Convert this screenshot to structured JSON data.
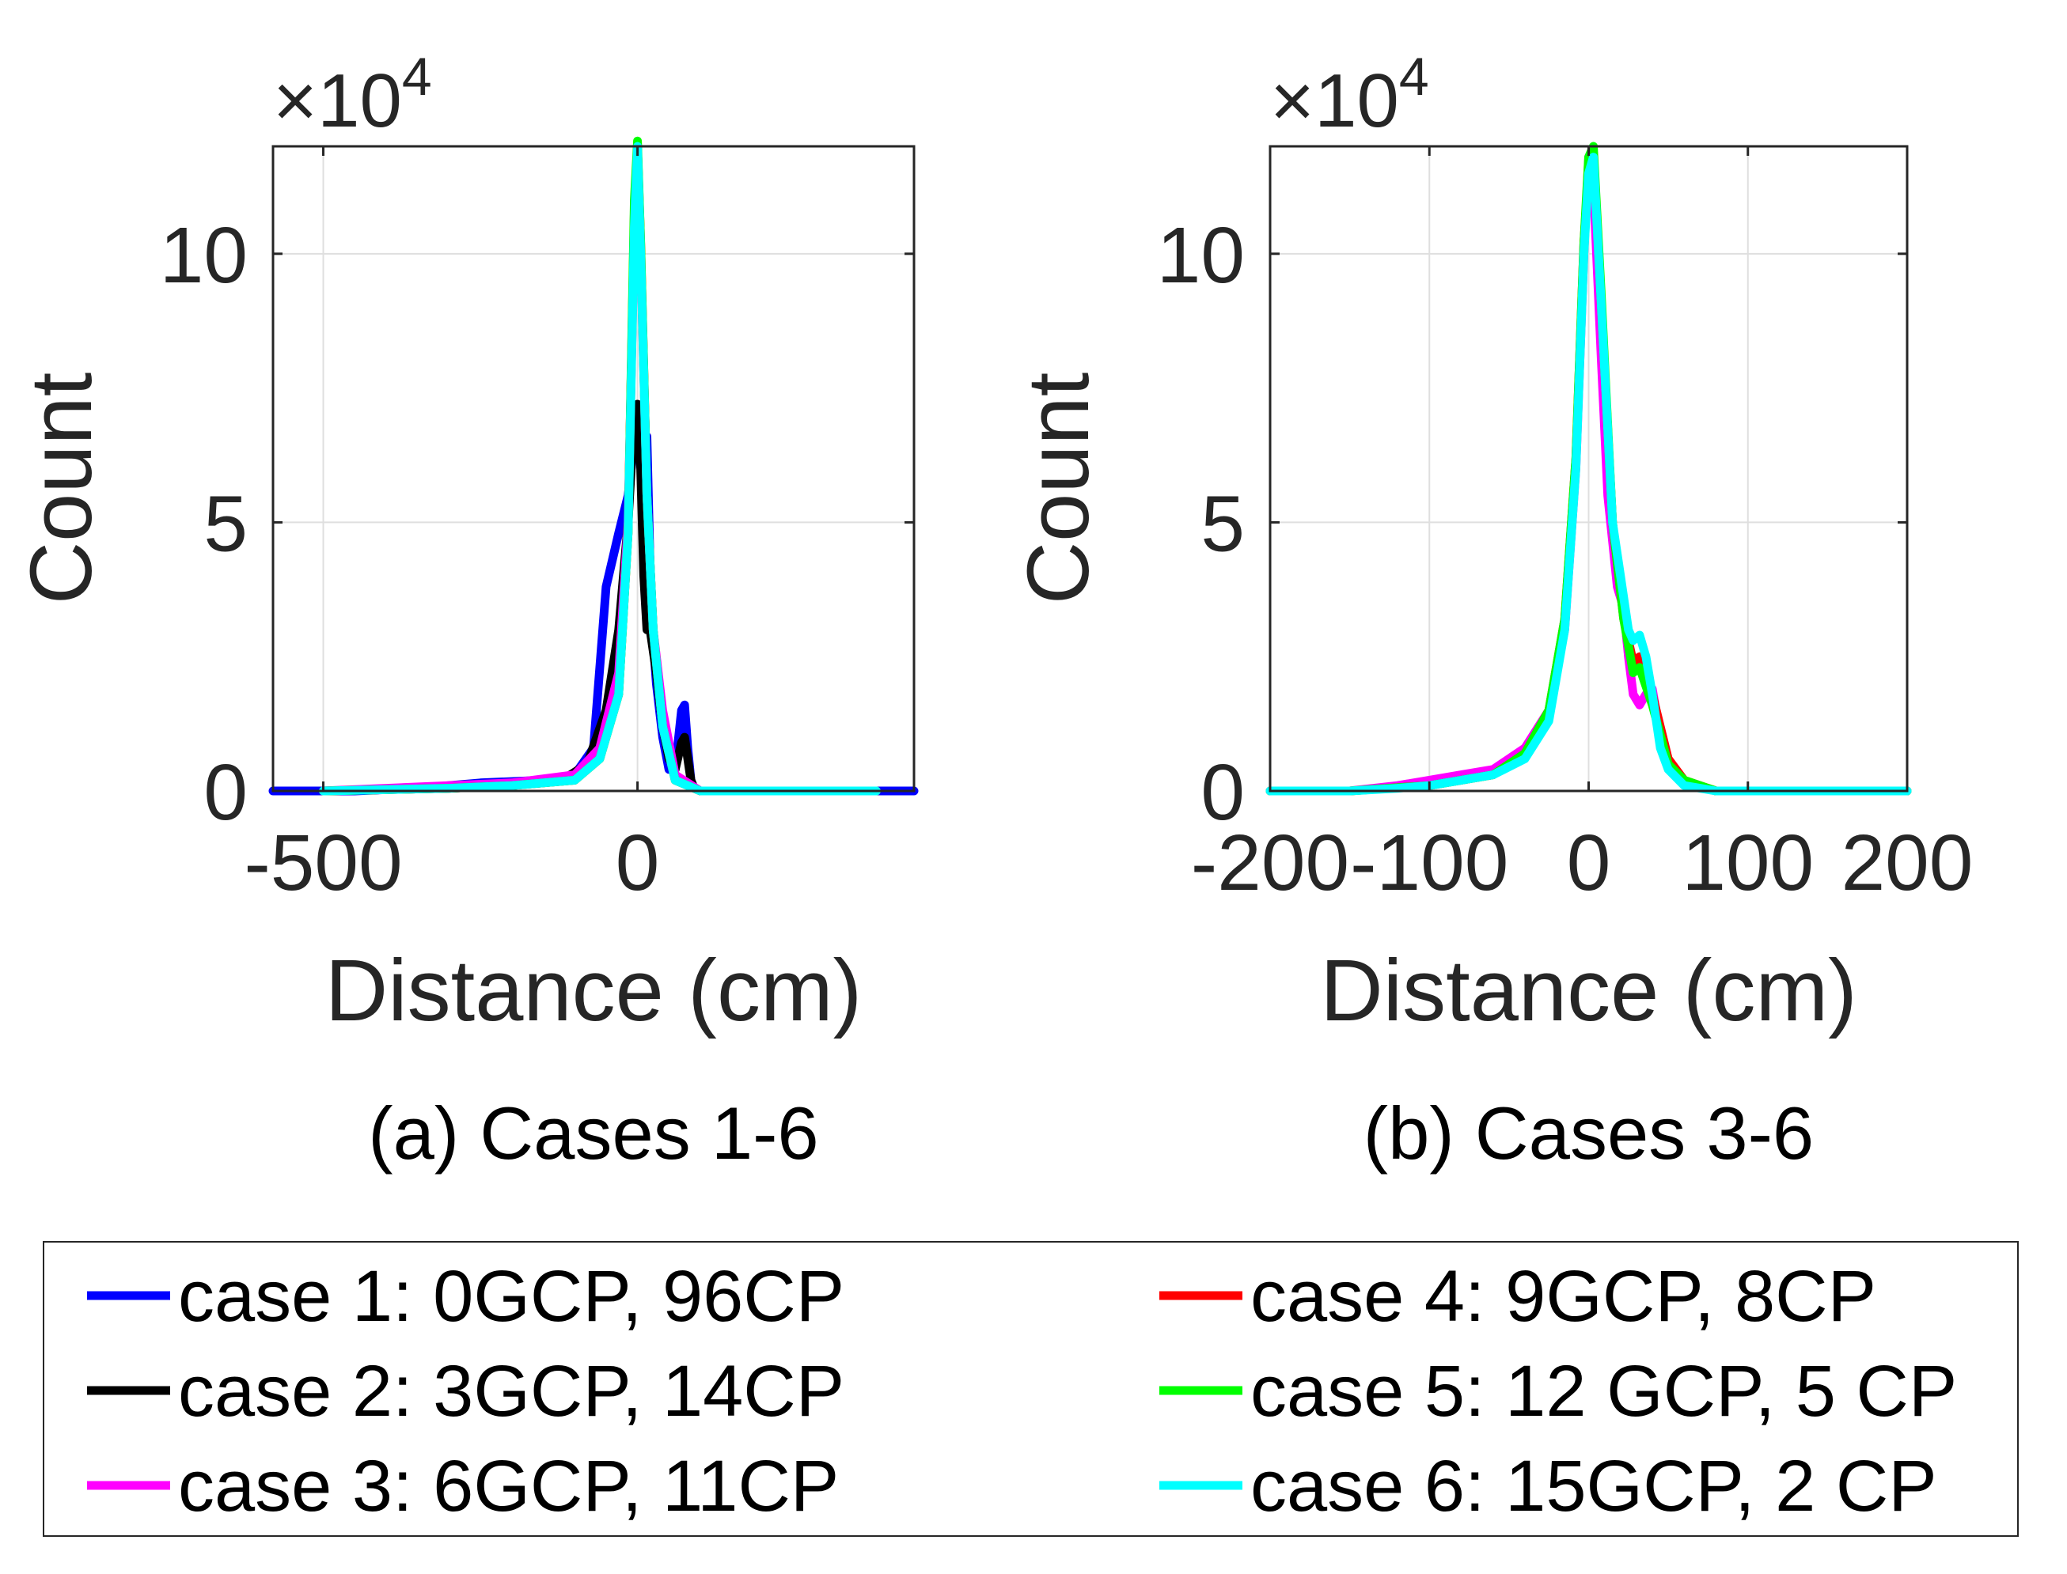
{
  "chart_data": [
    {
      "type": "line",
      "subtitle": "(a) Cases 1-6",
      "xlabel": "Distance (cm)",
      "ylabel": "Count",
      "y_multiplier": "×10",
      "y_multiplier_exp": "4",
      "xlim": [
        -580,
        440
      ],
      "ylim": [
        0,
        12
      ],
      "xticks": [
        -500,
        0
      ],
      "xtick_labels": [
        "-500",
        "0"
      ],
      "yticks": [
        0,
        5,
        10
      ],
      "ytick_labels": [
        "0",
        "5",
        "10"
      ],
      "grid": true,
      "series": [
        {
          "name": "case 1: 0GCP, 96CP",
          "color": "#0000FF",
          "x": [
            -580,
            -520,
            -450,
            -350,
            -250,
            -150,
            -100,
            -70,
            -50,
            -30,
            -15,
            -5,
            0,
            5,
            10,
            15,
            20,
            25,
            30,
            40,
            50,
            60,
            70,
            75,
            80,
            85,
            90,
            100,
            150,
            250,
            350,
            380,
            440
          ],
          "y": [
            0,
            0,
            0,
            0.05,
            0.15,
            0.2,
            0.3,
            0.8,
            3.8,
            4.8,
            5.5,
            6.5,
            7.0,
            6.8,
            6.6,
            6.6,
            4.2,
            2.8,
            2.0,
            1.0,
            0.4,
            0.4,
            1.5,
            1.6,
            0.8,
            0.2,
            0.05,
            0,
            0,
            0,
            0,
            0,
            0
          ]
        },
        {
          "name": "case 2: 3GCP, 14CP",
          "color": "#000000",
          "x": [
            -500,
            -300,
            -200,
            -120,
            -80,
            -50,
            -30,
            -15,
            -5,
            0,
            5,
            10,
            15,
            20,
            30,
            40,
            50,
            60,
            70,
            75,
            80,
            85,
            90,
            100,
            200,
            380
          ],
          "y": [
            0,
            0.05,
            0.1,
            0.2,
            0.5,
            1.5,
            3.0,
            5.0,
            7.0,
            7.2,
            6.0,
            4.0,
            3.0,
            3.0,
            2.2,
            1.2,
            0.6,
            0.4,
            0.9,
            1.0,
            0.6,
            0.2,
            0.05,
            0,
            0,
            0
          ]
        },
        {
          "name": "case 3: 6GCP, 11CP",
          "color": "#FF00FF",
          "x": [
            -500,
            -300,
            -200,
            -100,
            -60,
            -30,
            -15,
            -5,
            0,
            5,
            15,
            25,
            40,
            60,
            100,
            380
          ],
          "y": [
            0,
            0.1,
            0.15,
            0.3,
            0.8,
            2.2,
            5.0,
            10.5,
            11.8,
            10.0,
            5.5,
            3.0,
            1.5,
            0.3,
            0,
            0
          ]
        },
        {
          "name": "case 4: 9GCP, 8CP",
          "color": "#FF0000",
          "x": [
            -500,
            -300,
            -200,
            -100,
            -60,
            -30,
            -15,
            -5,
            0,
            5,
            15,
            25,
            40,
            60,
            100,
            380
          ],
          "y": [
            0,
            0.05,
            0.1,
            0.2,
            0.6,
            1.8,
            4.8,
            10.8,
            12.0,
            10.2,
            5.5,
            3.0,
            1.2,
            0.2,
            0,
            0
          ]
        },
        {
          "name": "case 5: 12 GCP, 5 CP",
          "color": "#00FF00",
          "x": [
            -500,
            -300,
            -200,
            -100,
            -60,
            -30,
            -15,
            -5,
            0,
            5,
            15,
            25,
            40,
            60,
            100,
            380
          ],
          "y": [
            0,
            0.05,
            0.1,
            0.2,
            0.6,
            1.8,
            4.8,
            11.0,
            12.1,
            10.2,
            5.5,
            3.0,
            1.2,
            0.2,
            0,
            0
          ]
        },
        {
          "name": "case 6: 15GCP, 2 CP",
          "color": "#00FFFF",
          "x": [
            -500,
            -300,
            -200,
            -100,
            -60,
            -30,
            -15,
            -5,
            0,
            5,
            15,
            25,
            40,
            60,
            100,
            380
          ],
          "y": [
            0,
            0.05,
            0.1,
            0.2,
            0.6,
            1.8,
            4.8,
            10.5,
            12.0,
            10.0,
            5.5,
            3.0,
            1.2,
            0.2,
            0,
            0
          ]
        }
      ]
    },
    {
      "type": "line",
      "subtitle": "(b) Cases 3-6",
      "xlabel": "Distance (cm)",
      "ylabel": "Count",
      "y_multiplier": "×10",
      "y_multiplier_exp": "4",
      "xlim": [
        -200,
        200
      ],
      "ylim": [
        0,
        12
      ],
      "xticks": [
        -200,
        -100,
        0,
        100,
        200
      ],
      "xtick_labels": [
        "-200",
        "-100",
        "0",
        "100",
        "200"
      ],
      "yticks": [
        0,
        5,
        10
      ],
      "ytick_labels": [
        "0",
        "5",
        "10"
      ],
      "grid": true,
      "series": [
        {
          "name": "case 3: 6GCP, 11CP",
          "color": "#FF00FF",
          "x": [
            -200,
            -150,
            -120,
            -100,
            -80,
            -60,
            -40,
            -25,
            -15,
            -8,
            -3,
            0,
            3,
            8,
            12,
            18,
            22,
            25,
            28,
            32,
            36,
            40,
            44,
            48,
            55,
            65,
            80,
            100,
            150,
            200
          ],
          "y": [
            0,
            0,
            0.1,
            0.2,
            0.3,
            0.4,
            0.8,
            1.5,
            3.0,
            6.0,
            10.0,
            11.8,
            11.3,
            8.0,
            5.5,
            3.8,
            3.4,
            2.5,
            1.8,
            1.6,
            1.8,
            1.9,
            1.2,
            0.6,
            0.3,
            0.1,
            0,
            0,
            0,
            0
          ]
        },
        {
          "name": "case 4: 9GCP, 8CP",
          "color": "#FF0000",
          "x": [
            -200,
            -150,
            -100,
            -60,
            -40,
            -25,
            -15,
            -8,
            -3,
            0,
            3,
            8,
            15,
            22,
            28,
            32,
            40,
            50,
            60,
            80,
            100,
            200
          ],
          "y": [
            0,
            0,
            0.1,
            0.3,
            0.7,
            1.5,
            3.2,
            6.2,
            10.2,
            11.6,
            11.9,
            9.0,
            5.0,
            3.2,
            2.4,
            2.5,
            1.8,
            0.6,
            0.2,
            0,
            0,
            0
          ]
        },
        {
          "name": "case 5: 12 GCP, 5 CP",
          "color": "#00FF00",
          "x": [
            -200,
            -150,
            -100,
            -60,
            -40,
            -25,
            -15,
            -8,
            -3,
            0,
            3,
            8,
            15,
            22,
            28,
            32,
            40,
            50,
            60,
            80,
            100,
            200
          ],
          "y": [
            0,
            0,
            0.1,
            0.3,
            0.7,
            1.5,
            3.2,
            6.2,
            10.2,
            11.8,
            12.0,
            9.2,
            5.0,
            3.2,
            2.2,
            2.3,
            1.6,
            0.5,
            0.2,
            0,
            0,
            0
          ]
        },
        {
          "name": "case 6: 15GCP, 2 CP",
          "color": "#00FFFF",
          "x": [
            -200,
            -150,
            -120,
            -100,
            -80,
            -60,
            -40,
            -25,
            -15,
            -8,
            -3,
            0,
            3,
            8,
            15,
            20,
            25,
            28,
            32,
            36,
            40,
            45,
            50,
            60,
            80,
            100,
            150,
            200
          ],
          "y": [
            0,
            0,
            0.05,
            0.1,
            0.2,
            0.3,
            0.6,
            1.3,
            3.0,
            6.0,
            10.0,
            11.5,
            11.8,
            9.0,
            5.0,
            4.0,
            3.0,
            2.8,
            2.9,
            2.5,
            1.8,
            0.8,
            0.4,
            0.1,
            0,
            0,
            0,
            0
          ]
        }
      ]
    }
  ],
  "legend": {
    "placement": "bottom",
    "entries": [
      {
        "label": "case 1: 0GCP, 96CP",
        "color": "#0000FF"
      },
      {
        "label": "case 2: 3GCP, 14CP",
        "color": "#000000"
      },
      {
        "label": "case 3: 6GCP, 11CP",
        "color": "#FF00FF"
      },
      {
        "label": "case 4: 9GCP, 8CP",
        "color": "#FF0000"
      },
      {
        "label": "case 5: 12 GCP, 5 CP",
        "color": "#00FF00"
      },
      {
        "label": "case 6: 15GCP, 2 CP",
        "color": "#00FFFF"
      }
    ]
  }
}
